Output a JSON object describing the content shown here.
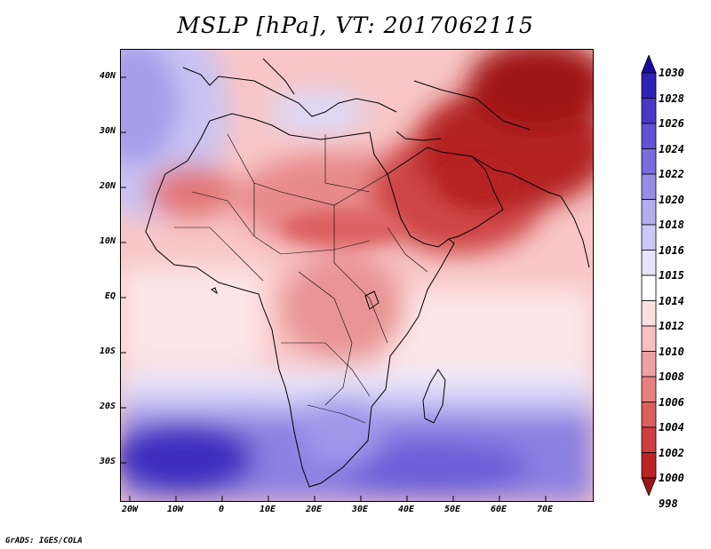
{
  "title": "MSLP [hPa], VT: 2017062115",
  "credit": "GrADS: IGES/COLA",
  "map": {
    "region": "Africa and Middle East",
    "projection": "latlon",
    "lon_range": [
      -22,
      80
    ],
    "lat_range": [
      -36,
      46
    ],
    "x_ticks": [
      "20W",
      "10W",
      "0",
      "10E",
      "20E",
      "30E",
      "40E",
      "50E",
      "60E",
      "70E"
    ],
    "y_ticks": [
      "40N",
      "30N",
      "20N",
      "10N",
      "EQ",
      "10S",
      "20S",
      "30S"
    ]
  },
  "colorbar": {
    "levels": [
      "1030",
      "1028",
      "1026",
      "1024",
      "1022",
      "1020",
      "1018",
      "1016",
      "1015",
      "1014",
      "1012",
      "1010",
      "1008",
      "1006",
      "1004",
      "1002",
      "1000",
      "998"
    ],
    "colors": [
      "#1a0c9e",
      "#2e22b4",
      "#4838c8",
      "#5f52d4",
      "#7a6cde",
      "#978de6",
      "#b3acee",
      "#cdc9f5",
      "#e6e4fb",
      "#ffffff",
      "#fde1e1",
      "#f8c0c0",
      "#f0a0a0",
      "#e88080",
      "#dc5e5e",
      "#cf3e3e",
      "#bb2424",
      "#a01616"
    ]
  },
  "colors": {
    "frame": "#000000",
    "coast": "#000000"
  }
}
